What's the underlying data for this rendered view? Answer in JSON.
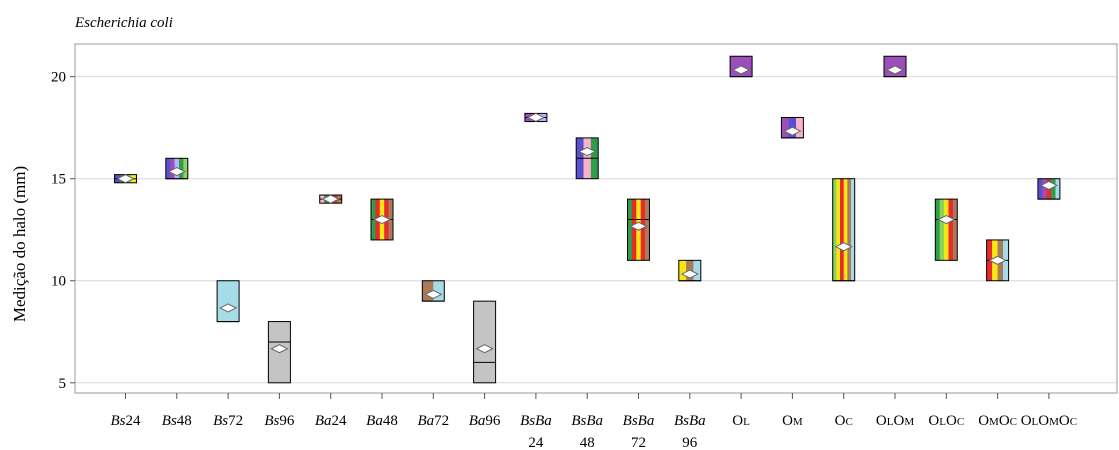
{
  "chart_data": {
    "type": "box",
    "title": "Escherichia coli",
    "ylabel": "Medição do halo (mm)",
    "xlabel": "",
    "ylim": [
      4.5,
      21.6
    ],
    "yticks": [
      5,
      10,
      15,
      20
    ],
    "grid": true,
    "categories": [
      {
        "parts": [
          {
            "t": "Bs",
            "i": true
          },
          {
            "t": "24"
          }
        ]
      },
      {
        "parts": [
          {
            "t": "Bs",
            "i": true
          },
          {
            "t": "48"
          }
        ]
      },
      {
        "parts": [
          {
            "t": "Bs",
            "i": true
          },
          {
            "t": "72"
          }
        ]
      },
      {
        "parts": [
          {
            "t": "Bs",
            "i": true
          },
          {
            "t": "96"
          }
        ]
      },
      {
        "parts": [
          {
            "t": "Ba",
            "i": true
          },
          {
            "t": "24"
          }
        ]
      },
      {
        "parts": [
          {
            "t": "Ba",
            "i": true
          },
          {
            "t": "48"
          }
        ]
      },
      {
        "parts": [
          {
            "t": "Ba",
            "i": true
          },
          {
            "t": "72"
          }
        ]
      },
      {
        "parts": [
          {
            "t": "Ba",
            "i": true
          },
          {
            "t": "96"
          }
        ]
      },
      {
        "parts": [
          {
            "t": "BsBa",
            "i": true
          }
        ],
        "line2": "24"
      },
      {
        "parts": [
          {
            "t": "BsBa",
            "i": true
          }
        ],
        "line2": "48"
      },
      {
        "parts": [
          {
            "t": "BsBa",
            "i": true
          }
        ],
        "line2": "72"
      },
      {
        "parts": [
          {
            "t": "BsBa",
            "i": true
          }
        ],
        "line2": "96"
      },
      {
        "parts": [
          {
            "t": "O"
          },
          {
            "t": "L",
            "s": true
          }
        ]
      },
      {
        "parts": [
          {
            "t": "O"
          },
          {
            "t": "M",
            "s": true
          }
        ]
      },
      {
        "parts": [
          {
            "t": "O"
          },
          {
            "t": "C",
            "s": true
          }
        ]
      },
      {
        "parts": [
          {
            "t": "O"
          },
          {
            "t": "L",
            "s": true
          },
          {
            "t": "O"
          },
          {
            "t": "M",
            "s": true
          }
        ]
      },
      {
        "parts": [
          {
            "t": "O"
          },
          {
            "t": "L",
            "s": true
          },
          {
            "t": "O"
          },
          {
            "t": "C",
            "s": true
          }
        ]
      },
      {
        "parts": [
          {
            "t": "O"
          },
          {
            "t": "M",
            "s": true
          },
          {
            "t": "O"
          },
          {
            "t": "C",
            "s": true
          }
        ]
      },
      {
        "parts": [
          {
            "t": "O"
          },
          {
            "t": "L",
            "s": true
          },
          {
            "t": "O"
          },
          {
            "t": "M",
            "s": true
          },
          {
            "t": "O"
          },
          {
            "t": "C",
            "s": true
          }
        ]
      }
    ],
    "boxes": [
      {
        "q1": 14.8,
        "median": 15.0,
        "q3": 15.2,
        "mean": 15.0,
        "colors": [
          "#5a4fcf",
          "#2f9e4a",
          "#8bd35a",
          "#f5e614"
        ]
      },
      {
        "q1": 15.0,
        "median": 15.0,
        "q3": 16.0,
        "mean": 15.35,
        "colors": [
          "#5a4fcf",
          "#9b4fb8",
          "#b3b3ff",
          "#2f9e4a",
          "#8bd35a"
        ]
      },
      {
        "q1": 8.0,
        "median": 8.0,
        "q3": 10.0,
        "mean": 8.67,
        "colors": [
          "#a6dbe8"
        ]
      },
      {
        "q1": 5.0,
        "median": 7.0,
        "q3": 8.0,
        "mean": 6.67,
        "colors": [
          "#c4c4c4"
        ]
      },
      {
        "q1": 13.8,
        "median": 14.0,
        "q3": 14.2,
        "mean": 14.0,
        "colors": [
          "#f7b3c8",
          "#2f9e4a",
          "#f5e614",
          "#e82a2a",
          "#a87b5a"
        ]
      },
      {
        "q1": 12.0,
        "median": 13.0,
        "q3": 14.0,
        "mean": 13.0,
        "colors": [
          "#2f9e4a",
          "#e82a2a",
          "#f5e614",
          "#e82a2a",
          "#a87b5a"
        ]
      },
      {
        "q1": 9.0,
        "median": 9.0,
        "q3": 10.0,
        "mean": 9.33,
        "colors": [
          "#a87b5a",
          "#a6dbe8"
        ]
      },
      {
        "q1": 5.0,
        "median": 6.0,
        "q3": 9.0,
        "mean": 6.67,
        "colors": [
          "#c4c4c4"
        ]
      },
      {
        "q1": 17.8,
        "median": 18.0,
        "q3": 18.2,
        "mean": 18.0,
        "colors": [
          "#9b4fb8",
          "#c06ad6",
          "#b3b3ff"
        ]
      },
      {
        "q1": 15.0,
        "median": 16.0,
        "q3": 17.0,
        "mean": 16.33,
        "colors": [
          "#5a4fcf",
          "#f7b3c8",
          "#2f9e4a"
        ]
      },
      {
        "q1": 11.0,
        "median": 13.0,
        "q3": 14.0,
        "mean": 12.67,
        "colors": [
          "#2f9e4a",
          "#e82a2a",
          "#f5e614",
          "#e82a2a",
          "#a87b5a"
        ]
      },
      {
        "q1": 10.0,
        "median": 10.0,
        "q3": 11.0,
        "mean": 10.33,
        "colors": [
          "#f5e614",
          "#a87b5a",
          "#a6dbe8"
        ]
      },
      {
        "q1": 20.0,
        "median": 20.0,
        "q3": 21.0,
        "mean": 20.33,
        "colors": [
          "#9b4fb8"
        ]
      },
      {
        "q1": 17.0,
        "median": 17.0,
        "q3": 18.0,
        "mean": 17.33,
        "colors": [
          "#9b4fb8",
          "#5a4fcf",
          "#f7b3c8"
        ]
      },
      {
        "q1": 10.0,
        "median": 10.0,
        "q3": 15.0,
        "mean": 11.67,
        "colors": [
          "#8bd35a",
          "#f5e614",
          "#e82a2a",
          "#f5e614",
          "#a87b5a",
          "#a6dbe8"
        ]
      },
      {
        "q1": 20.0,
        "median": 20.0,
        "q3": 21.0,
        "mean": 20.33,
        "colors": [
          "#9b4fb8"
        ]
      },
      {
        "q1": 11.0,
        "median": 13.0,
        "q3": 14.0,
        "mean": 13.0,
        "colors": [
          "#2f9e4a",
          "#8bd35a",
          "#f5e614",
          "#e82a2a",
          "#a87b5a"
        ]
      },
      {
        "q1": 10.0,
        "median": 11.0,
        "q3": 12.0,
        "mean": 11.0,
        "colors": [
          "#e82a2a",
          "#f5e614",
          "#a87b5a",
          "#a6dbe8"
        ]
      },
      {
        "q1": 14.0,
        "median": 14.0,
        "q3": 15.0,
        "mean": 14.67,
        "colors": [
          "#5a4fcf",
          "#9b4fb8",
          "#e82a2a",
          "#2f9e4a",
          "#a6dbe8"
        ]
      }
    ]
  }
}
